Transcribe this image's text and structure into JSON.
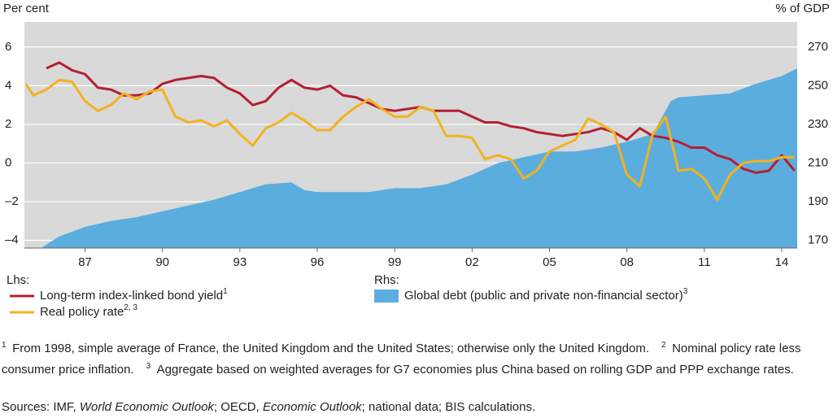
{
  "chart_data": {
    "type": "line",
    "ylabel": "Per cent",
    "y2label": "% of GDP",
    "xlim": [
      1984.65,
      2014.6
    ],
    "xticks": [
      {
        "value": 1987,
        "label": "87"
      },
      {
        "value": 1990,
        "label": "90"
      },
      {
        "value": 1993,
        "label": "93"
      },
      {
        "value": 1996,
        "label": "96"
      },
      {
        "value": 1999,
        "label": "99"
      },
      {
        "value": 2002,
        "label": "02"
      },
      {
        "value": 2005,
        "label": "05"
      },
      {
        "value": 2008,
        "label": "08"
      },
      {
        "value": 2011,
        "label": "11"
      },
      {
        "value": 2014,
        "label": "14"
      }
    ],
    "ylim": [
      -4.4,
      7.3
    ],
    "yticks": [
      {
        "value": -4,
        "label": "–4"
      },
      {
        "value": -2,
        "label": "–2"
      },
      0,
      2,
      4,
      6
    ],
    "y2lim": [
      166,
      283
    ],
    "y2ticks": [
      170,
      190,
      210,
      230,
      250,
      270
    ],
    "grid": true,
    "legend_lhs": "Lhs:",
    "legend_rhs": "Rhs:",
    "series": [
      {
        "name": "Long-term index-linked bond yield",
        "note": "1",
        "type": "line",
        "color": "#b41f33",
        "x": [
          1985.5,
          1986,
          1986.5,
          1987,
          1987.5,
          1988,
          1988.5,
          1989,
          1989.5,
          1990,
          1990.5,
          1991,
          1991.5,
          1992,
          1992.5,
          1993,
          1993.5,
          1994,
          1994.5,
          1995,
          1995.5,
          1996,
          1996.5,
          1997,
          1997.5,
          1998,
          1998.5,
          1999,
          1999.5,
          2000,
          2000.5,
          2001,
          2001.5,
          2002,
          2002.5,
          2003,
          2003.5,
          2004,
          2004.5,
          2005,
          2005.5,
          2006,
          2006.5,
          2007,
          2007.5,
          2008,
          2008.5,
          2009,
          2009.5,
          2010,
          2010.5,
          2011,
          2011.5,
          2012,
          2012.5,
          2013,
          2013.5,
          2014,
          2014.5
        ],
        "values": [
          4.9,
          5.2,
          4.8,
          4.6,
          3.9,
          3.8,
          3.5,
          3.5,
          3.6,
          4.1,
          4.3,
          4.4,
          4.5,
          4.4,
          3.9,
          3.6,
          3.0,
          3.2,
          3.9,
          4.3,
          3.9,
          3.8,
          4.0,
          3.5,
          3.4,
          3.1,
          2.8,
          2.7,
          2.8,
          2.9,
          2.7,
          2.7,
          2.7,
          2.4,
          2.1,
          2.1,
          1.9,
          1.8,
          1.6,
          1.5,
          1.4,
          1.5,
          1.6,
          1.8,
          1.6,
          1.2,
          1.8,
          1.4,
          1.3,
          1.1,
          0.8,
          0.8,
          0.4,
          0.2,
          -0.3,
          -0.5,
          -0.4,
          0.4,
          -0.4
        ]
      },
      {
        "name": "Real policy rate",
        "note": "2, 3",
        "type": "line",
        "color": "#f2b21f",
        "x": [
          1984.7,
          1985,
          1985.5,
          1986,
          1986.5,
          1987,
          1987.5,
          1988,
          1988.5,
          1989,
          1989.5,
          1990,
          1990.5,
          1991,
          1991.5,
          1992,
          1992.5,
          1993,
          1993.5,
          1994,
          1994.5,
          1995,
          1995.5,
          1996,
          1996.5,
          1997,
          1997.5,
          1998,
          1998.5,
          1999,
          1999.5,
          2000,
          2000.5,
          2001,
          2001.5,
          2002,
          2002.5,
          2003,
          2003.5,
          2004,
          2004.5,
          2005,
          2005.5,
          2006,
          2006.5,
          2007,
          2007.5,
          2008,
          2008.5,
          2009,
          2009.5,
          2010,
          2010.5,
          2011,
          2011.5,
          2012,
          2012.5,
          2013,
          2013.5,
          2014,
          2014.5
        ],
        "values": [
          4.1,
          3.5,
          3.8,
          4.3,
          4.2,
          3.2,
          2.7,
          3.0,
          3.6,
          3.3,
          3.7,
          3.8,
          2.4,
          2.1,
          2.2,
          1.9,
          2.2,
          1.5,
          0.9,
          1.8,
          2.1,
          2.6,
          2.2,
          1.7,
          1.7,
          2.4,
          2.9,
          3.3,
          2.8,
          2.4,
          2.4,
          2.9,
          2.7,
          1.4,
          1.4,
          1.3,
          0.2,
          0.4,
          0.2,
          -0.8,
          -0.4,
          0.6,
          0.9,
          1.2,
          2.3,
          2.0,
          1.6,
          -0.6,
          -1.2,
          1.5,
          2.4,
          -0.4,
          -0.3,
          -0.8,
          -1.9,
          -0.6,
          0.0,
          0.1,
          0.1,
          0.3,
          0.3
        ]
      },
      {
        "name": "Global debt (public and private non-financial sector)",
        "note": "3",
        "type": "area",
        "axis": "y2",
        "color": "#5badde",
        "x": [
          1985.3,
          1986,
          1987,
          1988,
          1989,
          1990,
          1991,
          1992,
          1993,
          1994,
          1995,
          1995.5,
          1996,
          1997,
          1998,
          1999,
          2000,
          2001,
          2002,
          2003,
          2004,
          2005,
          2006,
          2007,
          2008,
          2009,
          2009.7,
          2010,
          2011,
          2012,
          2013,
          2014,
          2014.6
        ],
        "values": [
          166,
          172,
          177,
          180,
          182,
          185,
          188,
          191,
          195,
          199,
          200,
          196,
          195,
          195,
          195,
          197,
          197,
          199,
          204,
          210,
          213,
          216,
          216,
          218,
          221,
          225,
          242,
          244,
          245,
          246,
          251,
          255,
          259
        ]
      }
    ],
    "footnotes": [
      {
        "marker": "1",
        "text": "From 1998, simple average of France, the United Kingdom and the United States; otherwise only the United Kingdom."
      },
      {
        "marker": "2",
        "text": "Nominal policy rate less consumer price inflation."
      },
      {
        "marker": "3",
        "text": "Aggregate based on weighted averages for G7 economies plus China based on rolling GDP and PPP exchange rates."
      }
    ],
    "sources": [
      "Sources: IMF, ",
      "World Economic Outlook",
      "; OECD, ",
      "Economic Outlook",
      "; national data; BIS calculations."
    ]
  }
}
